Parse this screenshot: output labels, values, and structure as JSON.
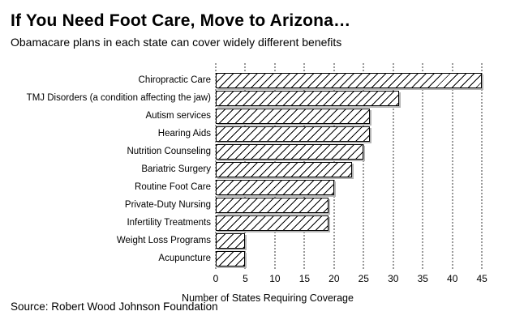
{
  "header": {
    "title": "If You Need Foot Care, Move to Arizona…",
    "subtitle": "Obamacare plans in each state can cover widely different benefits"
  },
  "footer": {
    "source": "Source: Robert Wood Johnson Foundation"
  },
  "chart_data": {
    "type": "bar",
    "orientation": "horizontal",
    "title": "If You Need Foot Care, Move to Arizona…",
    "subtitle": "Obamacare plans in each state can cover widely different benefits",
    "xlabel": "Number of States Requiring Coverage",
    "ylabel": "",
    "categories": [
      "Chiropractic Care",
      "TMJ Disorders (a condition affecting the jaw)",
      "Autism services",
      "Hearing Aids",
      "Nutrition Counseling",
      "Bariatric Surgery",
      "Routine Foot Care",
      "Private-Duty Nursing",
      "Infertility Treatments",
      "Weight Loss Programs",
      "Acupuncture"
    ],
    "values": [
      45,
      31,
      26,
      26,
      25,
      23,
      20,
      19,
      19,
      5,
      5
    ],
    "xlim": [
      0,
      45
    ],
    "xticks": [
      0,
      5,
      10,
      15,
      20,
      25,
      30,
      35,
      40,
      45
    ],
    "grid": "vertical dotted gridlines at each x tick",
    "legend": "none",
    "bar_style": {
      "fill": "#ffffff",
      "hatch": "/",
      "hatch_color": "#000000",
      "border_color": "#000000",
      "shadow_color": "#b4b4b4"
    },
    "colors": {
      "background": "#ffffff",
      "text": "#000000",
      "gridline": "#999999"
    }
  }
}
